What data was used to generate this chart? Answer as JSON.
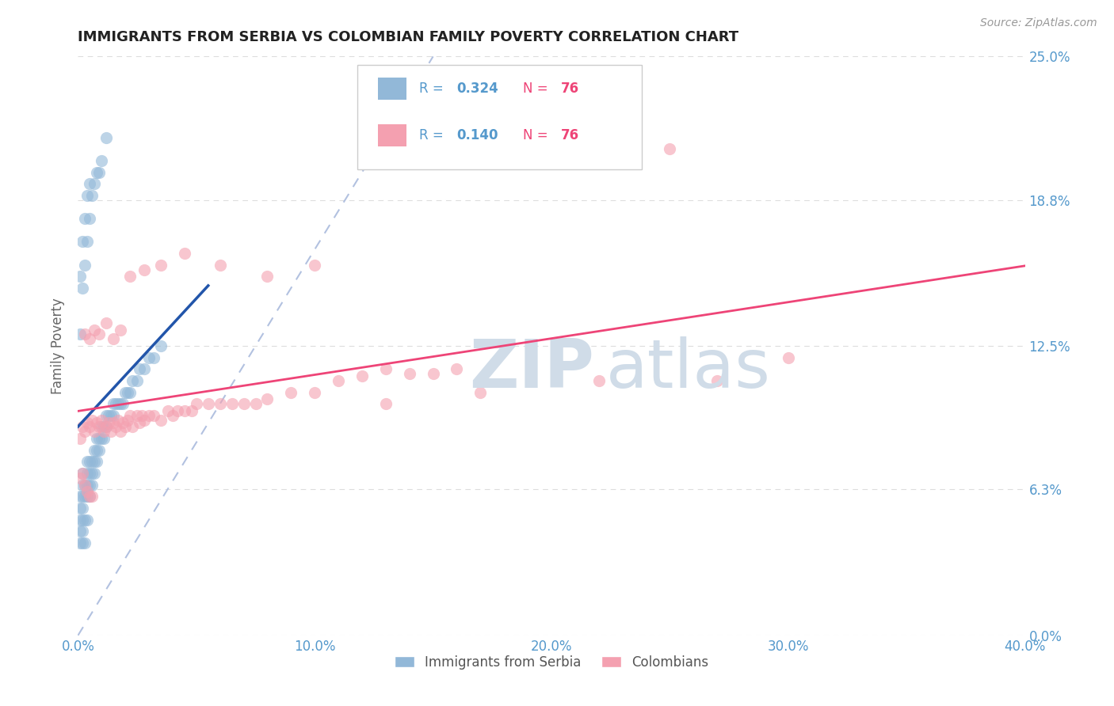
{
  "title": "IMMIGRANTS FROM SERBIA VS COLOMBIAN FAMILY POVERTY CORRELATION CHART",
  "source_text": "Source: ZipAtlas.com",
  "ylabel": "Family Poverty",
  "xlim": [
    0.0,
    0.4
  ],
  "ylim": [
    0.0,
    0.25
  ],
  "ytick_vals": [
    0.0,
    0.063,
    0.125,
    0.188,
    0.25
  ],
  "ytick_labels": [
    "0.0%",
    "6.3%",
    "12.5%",
    "18.8%",
    "25.0%"
  ],
  "xtick_vals": [
    0.0,
    0.1,
    0.2,
    0.3,
    0.4
  ],
  "xtick_labels": [
    "0.0%",
    "10.0%",
    "20.0%",
    "30.0%",
    "40.0%"
  ],
  "series1_name": "Immigrants from Serbia",
  "series2_name": "Colombians",
  "series1_color": "#92B8D8",
  "series2_color": "#F4A0B0",
  "series1_R": "0.324",
  "series2_R": "0.140",
  "series1_N": "76",
  "series2_N": "76",
  "trend1_color": "#2255AA",
  "trend2_color": "#EE4477",
  "ref_line_color": "#AABBDD",
  "watermark_zip": "ZIP",
  "watermark_atlas": "atlas",
  "watermark_color": "#D0DCE8",
  "title_color": "#222222",
  "axis_tick_color": "#5599CC",
  "legend_R_color": "#5599CC",
  "legend_N_color": "#EE4477",
  "legend_box_color": "#CCCCCC",
  "background_color": "#FFFFFF",
  "grid_color": "#DDDDDD",
  "serbia_x": [
    0.001,
    0.001,
    0.001,
    0.001,
    0.001,
    0.002,
    0.002,
    0.002,
    0.002,
    0.002,
    0.002,
    0.002,
    0.003,
    0.003,
    0.003,
    0.003,
    0.004,
    0.004,
    0.004,
    0.004,
    0.004,
    0.005,
    0.005,
    0.005,
    0.005,
    0.006,
    0.006,
    0.006,
    0.007,
    0.007,
    0.007,
    0.008,
    0.008,
    0.008,
    0.009,
    0.009,
    0.01,
    0.01,
    0.011,
    0.011,
    0.012,
    0.012,
    0.013,
    0.014,
    0.015,
    0.015,
    0.016,
    0.017,
    0.018,
    0.019,
    0.02,
    0.021,
    0.022,
    0.023,
    0.025,
    0.026,
    0.028,
    0.03,
    0.032,
    0.035,
    0.001,
    0.001,
    0.002,
    0.002,
    0.003,
    0.003,
    0.004,
    0.004,
    0.005,
    0.005,
    0.006,
    0.007,
    0.008,
    0.009,
    0.01,
    0.012
  ],
  "serbia_y": [
    0.04,
    0.045,
    0.05,
    0.055,
    0.06,
    0.04,
    0.045,
    0.05,
    0.055,
    0.06,
    0.065,
    0.07,
    0.04,
    0.05,
    0.06,
    0.065,
    0.05,
    0.06,
    0.065,
    0.07,
    0.075,
    0.06,
    0.065,
    0.07,
    0.075,
    0.065,
    0.07,
    0.075,
    0.07,
    0.075,
    0.08,
    0.075,
    0.08,
    0.085,
    0.08,
    0.085,
    0.085,
    0.09,
    0.085,
    0.09,
    0.09,
    0.095,
    0.095,
    0.095,
    0.095,
    0.1,
    0.1,
    0.1,
    0.1,
    0.1,
    0.105,
    0.105,
    0.105,
    0.11,
    0.11,
    0.115,
    0.115,
    0.12,
    0.12,
    0.125,
    0.13,
    0.155,
    0.15,
    0.17,
    0.16,
    0.18,
    0.17,
    0.19,
    0.18,
    0.195,
    0.19,
    0.195,
    0.2,
    0.2,
    0.205,
    0.215
  ],
  "colombia_x": [
    0.001,
    0.002,
    0.003,
    0.004,
    0.005,
    0.006,
    0.007,
    0.008,
    0.009,
    0.01,
    0.011,
    0.012,
    0.013,
    0.014,
    0.015,
    0.016,
    0.017,
    0.018,
    0.019,
    0.02,
    0.021,
    0.022,
    0.023,
    0.025,
    0.026,
    0.027,
    0.028,
    0.03,
    0.032,
    0.035,
    0.038,
    0.04,
    0.042,
    0.045,
    0.048,
    0.05,
    0.055,
    0.06,
    0.065,
    0.07,
    0.075,
    0.08,
    0.09,
    0.1,
    0.11,
    0.12,
    0.13,
    0.14,
    0.15,
    0.16,
    0.003,
    0.005,
    0.007,
    0.009,
    0.012,
    0.015,
    0.018,
    0.022,
    0.028,
    0.035,
    0.045,
    0.06,
    0.08,
    0.1,
    0.13,
    0.17,
    0.22,
    0.27,
    0.001,
    0.002,
    0.003,
    0.004,
    0.005,
    0.006,
    0.25,
    0.3
  ],
  "colombia_y": [
    0.085,
    0.09,
    0.088,
    0.092,
    0.09,
    0.093,
    0.088,
    0.092,
    0.09,
    0.093,
    0.088,
    0.09,
    0.092,
    0.088,
    0.092,
    0.09,
    0.093,
    0.088,
    0.092,
    0.09,
    0.093,
    0.095,
    0.09,
    0.095,
    0.092,
    0.095,
    0.093,
    0.095,
    0.095,
    0.093,
    0.097,
    0.095,
    0.097,
    0.097,
    0.097,
    0.1,
    0.1,
    0.1,
    0.1,
    0.1,
    0.1,
    0.102,
    0.105,
    0.105,
    0.11,
    0.112,
    0.115,
    0.113,
    0.113,
    0.115,
    0.13,
    0.128,
    0.132,
    0.13,
    0.135,
    0.128,
    0.132,
    0.155,
    0.158,
    0.16,
    0.165,
    0.16,
    0.155,
    0.16,
    0.1,
    0.105,
    0.11,
    0.11,
    0.068,
    0.07,
    0.065,
    0.062,
    0.06,
    0.06,
    0.21,
    0.12
  ]
}
